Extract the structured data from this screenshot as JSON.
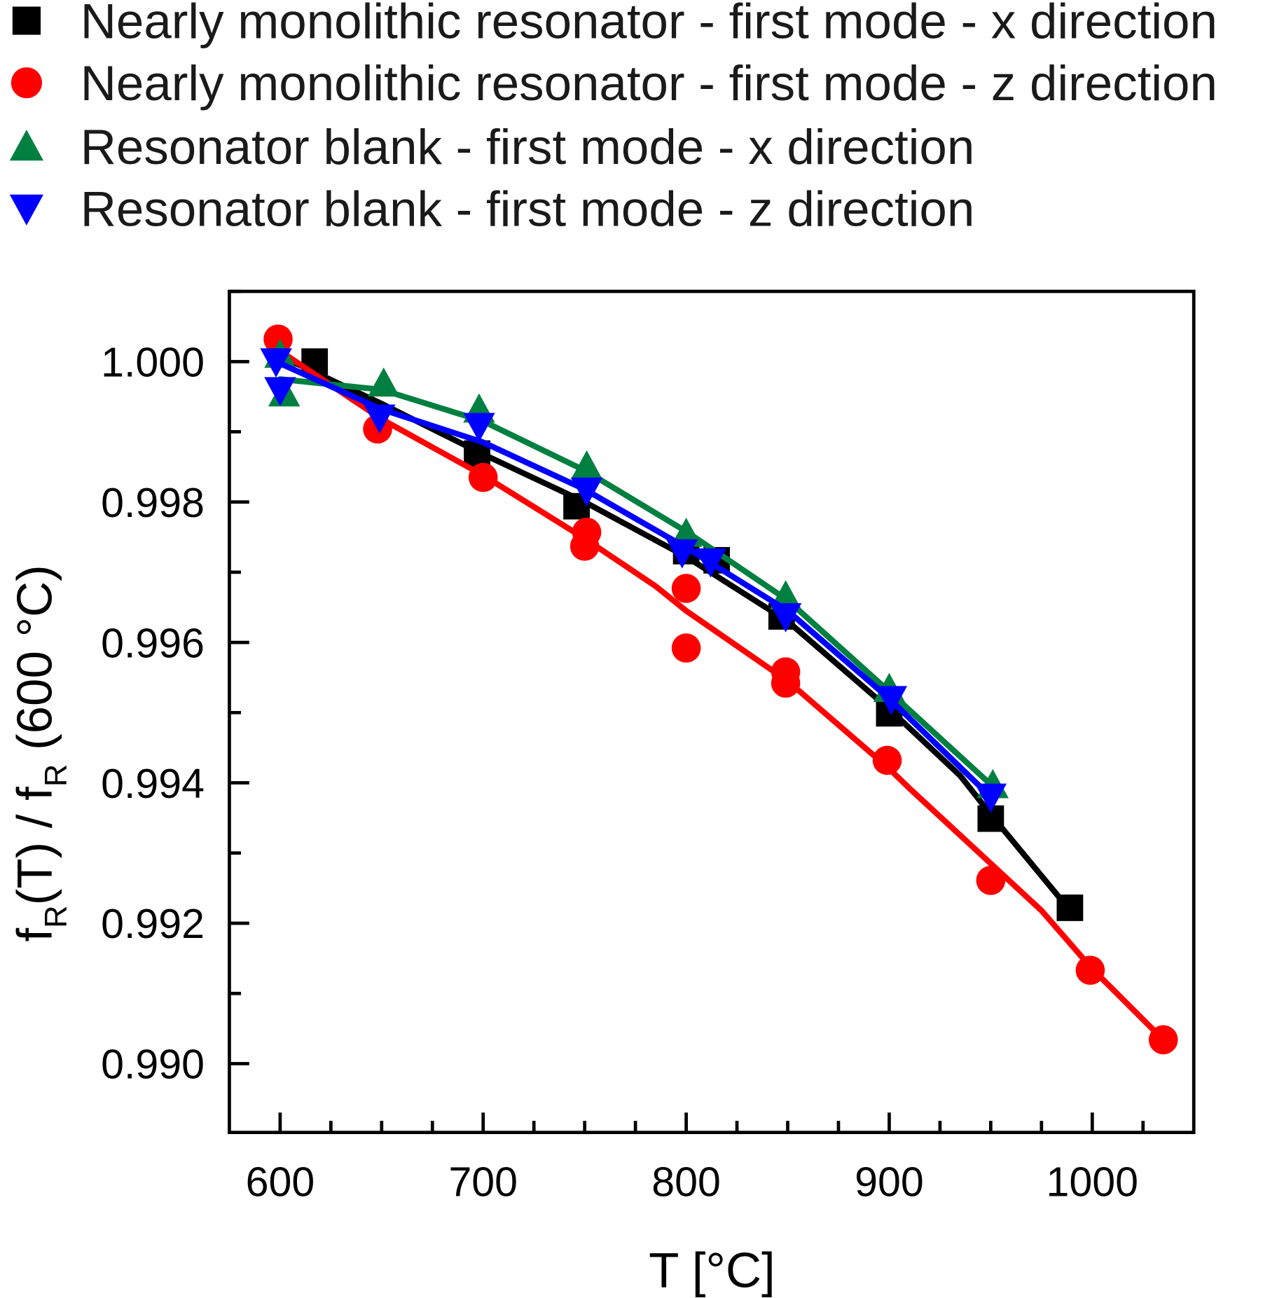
{
  "chart_data": {
    "type": "scatter",
    "title": "",
    "xlabel": "T [°C]",
    "ylabel": {
      "parts": [
        "f",
        "R",
        "(T) / f",
        "R",
        " (600 °C)"
      ],
      "text": "fR(T) / fR (600 °C)"
    },
    "xlim": [
      575,
      1050
    ],
    "ylim": [
      0.98902,
      1.001
    ],
    "xticks": [
      600,
      700,
      800,
      900,
      1000
    ],
    "xtick_labels": [
      "600",
      "700",
      "800",
      "900",
      "1000"
    ],
    "xminor_step": 25,
    "yticks": [
      1.0,
      0.998,
      0.996,
      0.994,
      0.992,
      0.99
    ],
    "ytick_labels": [
      "1.000",
      "0.998",
      "0.996",
      "0.994",
      "0.992",
      "0.990"
    ],
    "yminor_step": 0.001,
    "grid": false,
    "legend_position": "top",
    "series": [
      {
        "name": "Nearly monolithic resonator - first mode -  x direction",
        "marker": "square",
        "color": "#000000",
        "x": [
          617,
          697,
          746,
          800,
          815,
          847,
          900,
          950,
          989
        ],
        "y": [
          1.0,
          0.99869,
          0.99794,
          0.9973,
          0.99717,
          0.99637,
          0.99499,
          0.99349,
          0.99222
        ],
        "fit_x": [
          600,
          650,
          700,
          750,
          800,
          850,
          900,
          935,
          950,
          990
        ],
        "fit_y": [
          1.00008,
          0.9994,
          0.99868,
          0.998,
          0.99722,
          0.9963,
          0.99505,
          0.9941,
          0.99355,
          0.99215
        ]
      },
      {
        "name": "Nearly monolithic resonator - first mode -  z direction",
        "marker": "circle",
        "color": "#ff0000",
        "x": [
          599,
          648,
          700,
          751,
          750,
          800,
          800,
          849,
          849,
          899,
          950,
          999,
          1035
        ],
        "y": [
          1.00032,
          0.99904,
          0.99835,
          0.99757,
          0.99737,
          0.99677,
          0.99592,
          0.99558,
          0.99542,
          0.99432,
          0.99261,
          0.99133,
          0.99034
        ],
        "fit_x": [
          600,
          650,
          700,
          750,
          785,
          800,
          850,
          900,
          910,
          950,
          975,
          1000,
          1035
        ],
        "fit_y": [
          1.00015,
          0.99918,
          0.99838,
          0.99748,
          0.9968,
          0.99645,
          0.99545,
          0.9942,
          0.99392,
          0.99285,
          0.99218,
          0.99135,
          0.99034
        ]
      },
      {
        "name": "Resonator blank - first mode -  x direction",
        "marker": "triangle-up",
        "color": "#008040",
        "x": [
          600,
          602,
          651,
          698,
          751,
          800,
          849,
          900,
          951
        ],
        "y": [
          1.0001,
          0.99955,
          0.99969,
          0.99932,
          0.99851,
          0.99755,
          0.99666,
          0.99534,
          0.99397
        ],
        "fit_x": [
          600,
          650,
          700,
          750,
          800,
          850,
          900,
          951
        ],
        "fit_y": [
          0.99975,
          0.9996,
          0.99915,
          0.99845,
          0.99758,
          0.9966,
          0.9953,
          0.99395
        ]
      },
      {
        "name": "Resonator blank - first mode -  z direction",
        "marker": "triangle-down",
        "color": "#0000ff",
        "x": [
          598,
          600,
          649,
          698,
          751,
          798,
          812,
          849,
          901,
          950
        ],
        "y": [
          1.0,
          0.99959,
          0.9992,
          0.99908,
          0.99816,
          0.99728,
          0.99715,
          0.99637,
          0.99519,
          0.9938
        ],
        "fit_x": [
          598,
          650,
          700,
          750,
          800,
          850,
          900,
          950
        ],
        "fit_y": [
          1.0,
          0.99932,
          0.99885,
          0.99818,
          0.99735,
          0.99645,
          0.9952,
          0.9938
        ]
      }
    ]
  }
}
